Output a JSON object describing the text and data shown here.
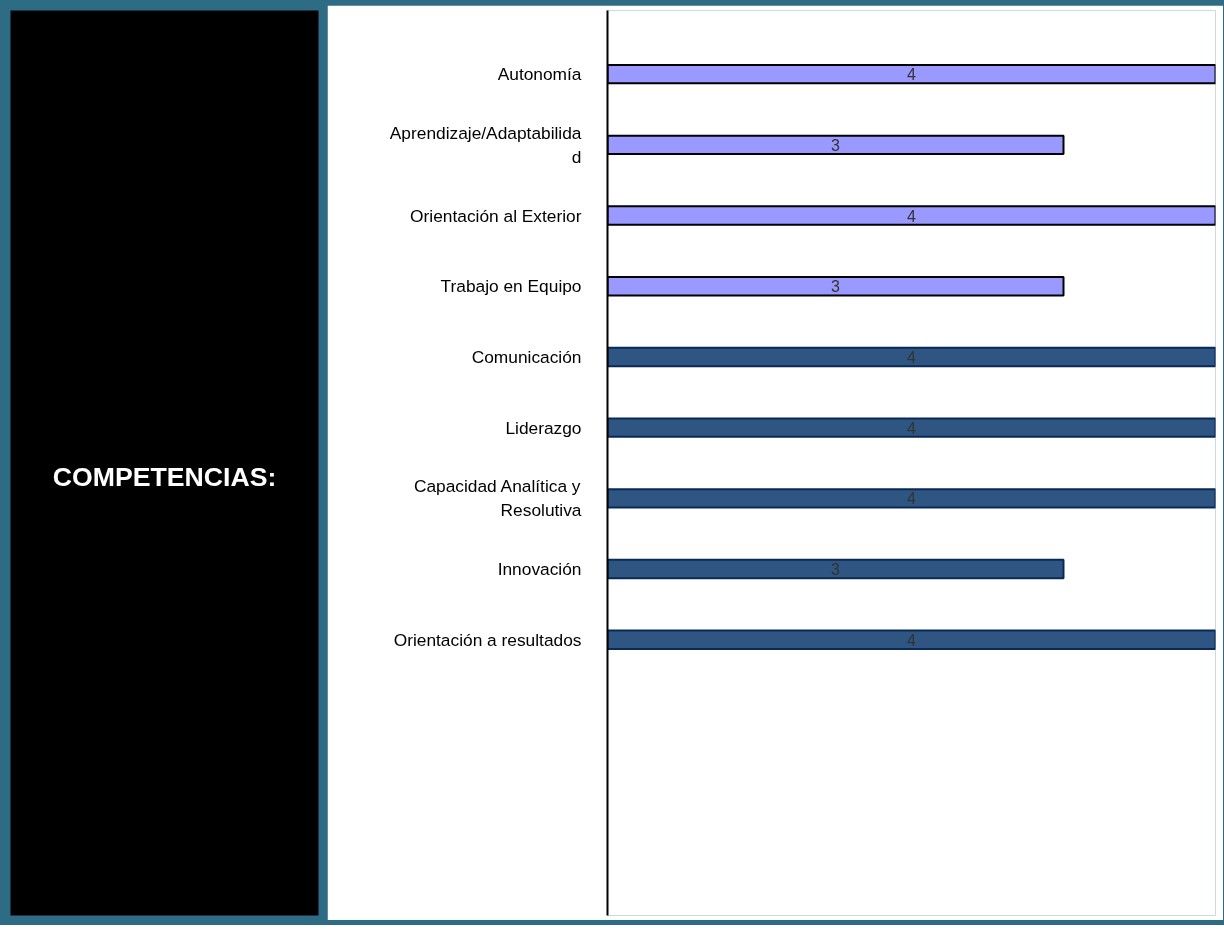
{
  "chart_data": {
    "type": "bar",
    "orientation": "horizontal",
    "title": "COMPETENCIAS:",
    "categories": [
      "Autonomía",
      "Aprendizaje/Adaptabilidad",
      "Orientación al Exterior",
      "Trabajo en Equipo",
      "Comunicación",
      "Liderazgo",
      "Capacidad Analítica y Resolutiva",
      "Innovación",
      "Orientación a resultados"
    ],
    "values": [
      4,
      3,
      4,
      3,
      4,
      4,
      4,
      3,
      4
    ],
    "colors": [
      "#9999ff",
      "#9999ff",
      "#9999ff",
      "#9999ff",
      "#2f5582",
      "#2f5582",
      "#2f5582",
      "#2f5582",
      "#2f5582"
    ],
    "xlim": [
      0,
      4
    ],
    "data_labels": true,
    "grid": false,
    "tick_labels": "y"
  }
}
